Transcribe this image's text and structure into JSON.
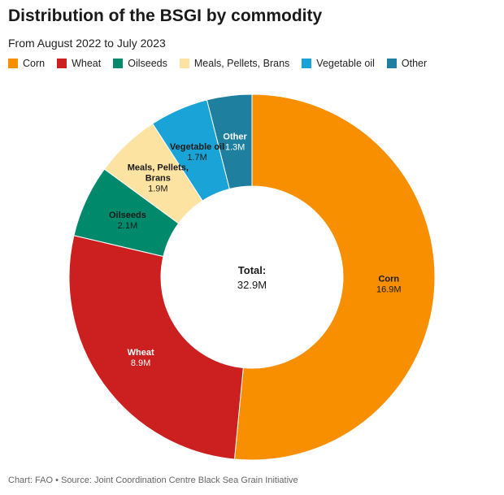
{
  "header": {
    "title": "Distribution of the BSGI by commodity",
    "subtitle": "From August 2022 to July 2023"
  },
  "chart_data": {
    "type": "pie",
    "variant": "donut",
    "title": "Distribution of the BSGI by commodity",
    "subtitle": "From August 2022 to July 2023",
    "legend_position": "top-left",
    "center_label": {
      "line1": "Total:",
      "line2": "32.9M"
    },
    "categories": [
      "Corn",
      "Wheat",
      "Oilseeds",
      "Meals, Pellets, Brans",
      "Vegetable oil",
      "Other"
    ],
    "values": [
      16.9,
      8.9,
      2.1,
      1.9,
      1.7,
      1.3
    ],
    "value_labels": [
      "16.9M",
      "8.9M",
      "2.1M",
      "1.9M",
      "1.7M",
      "1.3M"
    ],
    "colors": [
      "#f78f00",
      "#cc1f1f",
      "#00896a",
      "#fce3a1",
      "#1aa3d6",
      "#1f7f9e"
    ],
    "label_colors": [
      "#1a1a1a",
      "#ffffff",
      "#1a1a1a",
      "#1a1a1a",
      "#1a1a1a",
      "#ffffff"
    ]
  },
  "footer": {
    "credit": "Chart: FAO • Source: Joint Coordination Centre Black Sea Grain Initiative"
  }
}
